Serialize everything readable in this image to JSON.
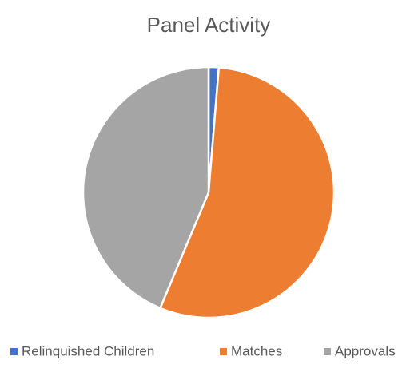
{
  "chart_data": {
    "type": "pie",
    "title": "Panel Activity",
    "categories": [
      "Relinquished Children",
      "Matches",
      "Approvals"
    ],
    "values": [
      1.3,
      55,
      43.7
    ],
    "colors": [
      "#4472c4",
      "#ed7d31",
      "#a5a5a5"
    ],
    "legend": "bottom"
  }
}
